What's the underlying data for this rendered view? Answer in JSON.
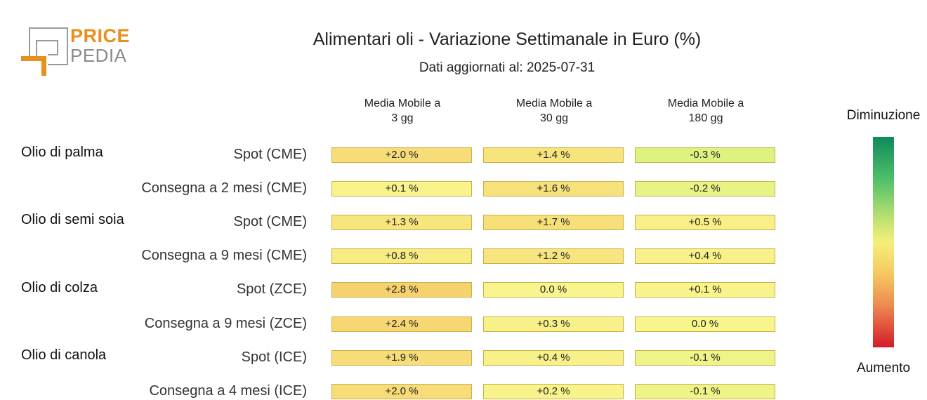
{
  "logo": {
    "line1": "PRICE",
    "line2": "PEDIA"
  },
  "title": "Alimentari oli - Variazione Settimanale in Euro (%)",
  "subtitle": "Dati aggiornati al: 2025-07-31",
  "columns": [
    "Media Mobile a\n3 gg",
    "Media Mobile a\n30 gg",
    "Media Mobile a\n180 gg"
  ],
  "legend": {
    "top": "Diminuzione",
    "bottom": "Aumento"
  },
  "groups": [
    "Olio di palma",
    "Olio di semi soia",
    "Olio di colza",
    "Olio di canola"
  ],
  "rows": [
    "Spot (CME)",
    "Consegna a 2 mesi (CME)",
    "Spot (CME)",
    "Consegna a 9 mesi (CME)",
    "Spot (ZCE)",
    "Consegna a 9 mesi (ZCE)",
    "Spot (ICE)",
    "Consegna a 4 mesi (ICE)"
  ],
  "labels": [
    [
      "+2.0 %",
      "+1.4 %",
      "-0.3 %"
    ],
    [
      "+0.1 %",
      "+1.6 %",
      "-0.2 %"
    ],
    [
      "+1.3 %",
      "+1.7 %",
      "+0.5 %"
    ],
    [
      "+0.8 %",
      "+1.2 %",
      "+0.4 %"
    ],
    [
      "+2.8 %",
      "0.0 %",
      "+0.1 %"
    ],
    [
      "+2.4 %",
      "+0.3 %",
      "0.0 %"
    ],
    [
      "+1.9 %",
      "+0.4 %",
      "-0.1 %"
    ],
    [
      "+2.0 %",
      "+0.2 %",
      "-0.1 %"
    ]
  ],
  "chart_data": {
    "type": "heatmap",
    "title": "Alimentari oli - Variazione Settimanale in Euro (%)",
    "subtitle": "Dati aggiornati al: 2025-07-31",
    "x": [
      "Media Mobile a 3 gg",
      "Media Mobile a 30 gg",
      "Media Mobile a 180 gg"
    ],
    "groups": [
      {
        "name": "Olio di palma",
        "rows": [
          "Spot (CME)",
          "Consegna a 2 mesi (CME)"
        ]
      },
      {
        "name": "Olio di semi soia",
        "rows": [
          "Spot (CME)",
          "Consegna a 9 mesi (CME)"
        ]
      },
      {
        "name": "Olio di colza",
        "rows": [
          "Spot (ZCE)",
          "Consegna a 9 mesi (ZCE)"
        ]
      },
      {
        "name": "Olio di canola",
        "rows": [
          "Spot (ICE)",
          "Consegna a 4 mesi (ICE)"
        ]
      }
    ],
    "values": [
      [
        2.0,
        1.4,
        -0.3
      ],
      [
        0.1,
        1.6,
        -0.2
      ],
      [
        1.3,
        1.7,
        0.5
      ],
      [
        0.8,
        1.2,
        0.4
      ],
      [
        2.8,
        0.0,
        0.1
      ],
      [
        2.4,
        0.3,
        0.0
      ],
      [
        1.9,
        0.4,
        -0.1
      ],
      [
        2.0,
        0.2,
        -0.1
      ]
    ],
    "colorscale": {
      "low": "#0f8a5a",
      "mid": "#f4f07a",
      "high": "#d41b2a"
    },
    "legend_labels": [
      "Diminuzione",
      "Aumento"
    ],
    "legend_position": "right"
  }
}
